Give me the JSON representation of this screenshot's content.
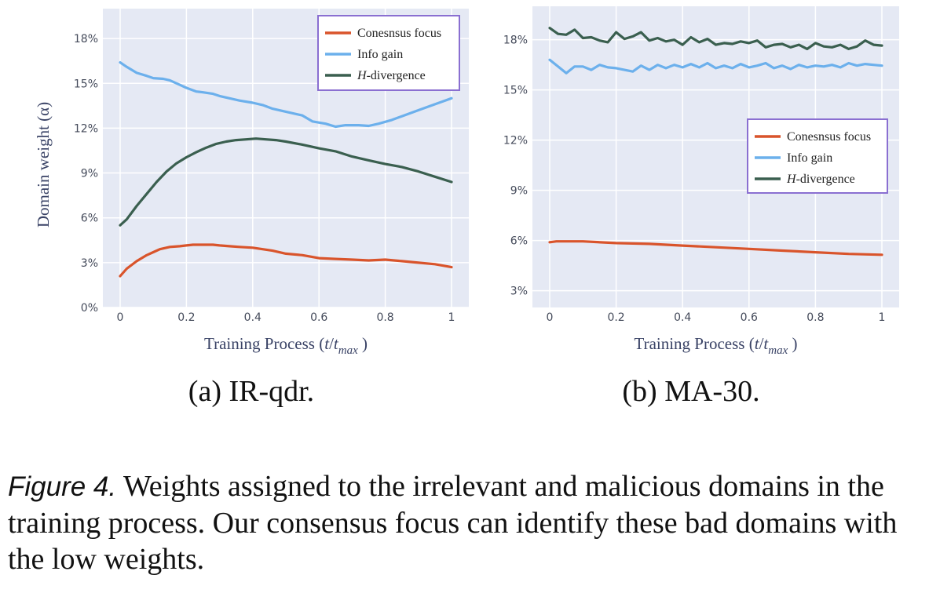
{
  "chart_data": [
    {
      "type": "line",
      "subcaption": "(a) IR-qdr.",
      "xlabel": "Training Process (t/t_max )",
      "xlabel_parts": {
        "prefix": "Training Process (",
        "t": "t",
        "slash": "/",
        "t2": "t",
        "sub": "max",
        "suffix": " )"
      },
      "ylabel": "Domain weight (α)",
      "xlim": [
        0,
        1
      ],
      "ylim": [
        0,
        20
      ],
      "x_ticks": [
        0,
        0.2,
        0.4,
        0.6,
        0.8,
        1
      ],
      "x_tick_labels": [
        "0",
        "0.2",
        "0.4",
        "0.6",
        "0.8",
        "1"
      ],
      "y_ticks": [
        0,
        3,
        6,
        9,
        12,
        15,
        18
      ],
      "y_tick_labels": [
        "0%",
        "3%",
        "6%",
        "9%",
        "12%",
        "15%",
        "18%"
      ],
      "legend_position": "top-right",
      "series": [
        {
          "name": "Conesnsus focus",
          "color": "#d9542b",
          "x": [
            0,
            0.02,
            0.05,
            0.08,
            0.1,
            0.12,
            0.15,
            0.18,
            0.2,
            0.22,
            0.25,
            0.28,
            0.3,
            0.33,
            0.36,
            0.4,
            0.43,
            0.46,
            0.5,
            0.55,
            0.6,
            0.65,
            0.7,
            0.75,
            0.8,
            0.85,
            0.9,
            0.95,
            1
          ],
          "values": [
            2.1,
            2.6,
            3.1,
            3.5,
            3.7,
            3.9,
            4.05,
            4.1,
            4.15,
            4.2,
            4.2,
            4.2,
            4.15,
            4.1,
            4.05,
            4.0,
            3.9,
            3.8,
            3.6,
            3.5,
            3.3,
            3.25,
            3.2,
            3.15,
            3.2,
            3.1,
            3.0,
            2.9,
            2.7
          ]
        },
        {
          "name": "Info gain",
          "color": "#6cb0ec",
          "x": [
            0,
            0.02,
            0.05,
            0.08,
            0.1,
            0.13,
            0.15,
            0.18,
            0.2,
            0.23,
            0.25,
            0.28,
            0.3,
            0.33,
            0.36,
            0.4,
            0.43,
            0.46,
            0.5,
            0.55,
            0.58,
            0.62,
            0.65,
            0.68,
            0.72,
            0.75,
            0.78,
            0.82,
            0.85,
            0.9,
            0.95,
            1
          ],
          "values": [
            16.4,
            16.1,
            15.7,
            15.5,
            15.35,
            15.3,
            15.2,
            14.9,
            14.7,
            14.45,
            14.4,
            14.3,
            14.15,
            14.0,
            13.85,
            13.7,
            13.55,
            13.3,
            13.1,
            12.85,
            12.45,
            12.3,
            12.1,
            12.2,
            12.2,
            12.15,
            12.3,
            12.55,
            12.8,
            13.2,
            13.6,
            14.0
          ]
        },
        {
          "name": "H-divergence",
          "color": "#3a5f4f",
          "x": [
            0,
            0.02,
            0.05,
            0.08,
            0.11,
            0.14,
            0.17,
            0.2,
            0.23,
            0.26,
            0.29,
            0.32,
            0.35,
            0.38,
            0.41,
            0.44,
            0.47,
            0.5,
            0.55,
            0.6,
            0.65,
            0.7,
            0.75,
            0.8,
            0.85,
            0.9,
            0.95,
            1
          ],
          "values": [
            5.5,
            5.9,
            6.8,
            7.6,
            8.4,
            9.1,
            9.65,
            10.05,
            10.4,
            10.7,
            10.95,
            11.1,
            11.2,
            11.25,
            11.3,
            11.25,
            11.2,
            11.1,
            10.9,
            10.65,
            10.45,
            10.1,
            9.85,
            9.6,
            9.4,
            9.1,
            8.75,
            8.4
          ]
        }
      ]
    },
    {
      "type": "line",
      "subcaption": "(b) MA-30.",
      "xlabel": "Training Process (t/t_max )",
      "xlabel_parts": {
        "prefix": "Training Process (",
        "t": "t",
        "slash": "/",
        "t2": "t",
        "sub": "max",
        "suffix": " )"
      },
      "ylabel": "",
      "xlim": [
        0,
        1
      ],
      "ylim": [
        2,
        20
      ],
      "x_ticks": [
        0,
        0.2,
        0.4,
        0.6,
        0.8,
        1
      ],
      "x_tick_labels": [
        "0",
        "0.2",
        "0.4",
        "0.6",
        "0.8",
        "1"
      ],
      "y_ticks": [
        3,
        6,
        9,
        12,
        15,
        18
      ],
      "y_tick_labels": [
        "3%",
        "6%",
        "9%",
        "12%",
        "15%",
        "18%"
      ],
      "legend_position": "middle-right",
      "series": [
        {
          "name": "Conesnsus focus",
          "color": "#d9542b",
          "x": [
            0,
            0.02,
            0.1,
            0.2,
            0.3,
            0.4,
            0.5,
            0.6,
            0.7,
            0.8,
            0.9,
            1
          ],
          "values": [
            5.9,
            5.95,
            5.95,
            5.85,
            5.8,
            5.7,
            5.6,
            5.5,
            5.4,
            5.3,
            5.2,
            5.15
          ]
        },
        {
          "name": "Info gain",
          "color": "#6cb0ec",
          "x": [
            0,
            0.025,
            0.05,
            0.075,
            0.1,
            0.125,
            0.15,
            0.175,
            0.2,
            0.225,
            0.25,
            0.275,
            0.3,
            0.325,
            0.35,
            0.375,
            0.4,
            0.425,
            0.45,
            0.475,
            0.5,
            0.525,
            0.55,
            0.575,
            0.6,
            0.625,
            0.65,
            0.675,
            0.7,
            0.725,
            0.75,
            0.775,
            0.8,
            0.825,
            0.85,
            0.875,
            0.9,
            0.925,
            0.95,
            0.975,
            1
          ],
          "values": [
            16.8,
            16.4,
            16.0,
            16.4,
            16.4,
            16.2,
            16.5,
            16.35,
            16.3,
            16.2,
            16.1,
            16.45,
            16.2,
            16.5,
            16.3,
            16.5,
            16.35,
            16.55,
            16.35,
            16.6,
            16.3,
            16.45,
            16.3,
            16.55,
            16.35,
            16.45,
            16.6,
            16.3,
            16.45,
            16.25,
            16.5,
            16.35,
            16.45,
            16.4,
            16.5,
            16.35,
            16.6,
            16.45,
            16.55,
            16.5,
            16.45
          ]
        },
        {
          "name": "H-divergence",
          "color": "#3a5f4f",
          "x": [
            0,
            0.025,
            0.05,
            0.075,
            0.1,
            0.125,
            0.15,
            0.175,
            0.2,
            0.225,
            0.25,
            0.275,
            0.3,
            0.325,
            0.35,
            0.375,
            0.4,
            0.425,
            0.45,
            0.475,
            0.5,
            0.525,
            0.55,
            0.575,
            0.6,
            0.625,
            0.65,
            0.675,
            0.7,
            0.725,
            0.75,
            0.775,
            0.8,
            0.825,
            0.85,
            0.875,
            0.9,
            0.925,
            0.95,
            0.975,
            1
          ],
          "values": [
            18.7,
            18.35,
            18.3,
            18.6,
            18.1,
            18.15,
            17.95,
            17.85,
            18.45,
            18.05,
            18.2,
            18.45,
            17.95,
            18.1,
            17.9,
            18.0,
            17.7,
            18.15,
            17.85,
            18.05,
            17.7,
            17.8,
            17.75,
            17.9,
            17.8,
            17.95,
            17.55,
            17.7,
            17.75,
            17.55,
            17.7,
            17.45,
            17.8,
            17.6,
            17.55,
            17.7,
            17.45,
            17.6,
            17.95,
            17.7,
            17.65
          ]
        }
      ]
    }
  ],
  "caption": {
    "label": "Figure 4.",
    "text": "Weights assigned to the irrelevant and malicious domains in the training process. Our consensus focus can identify these bad domains with the low weights."
  }
}
